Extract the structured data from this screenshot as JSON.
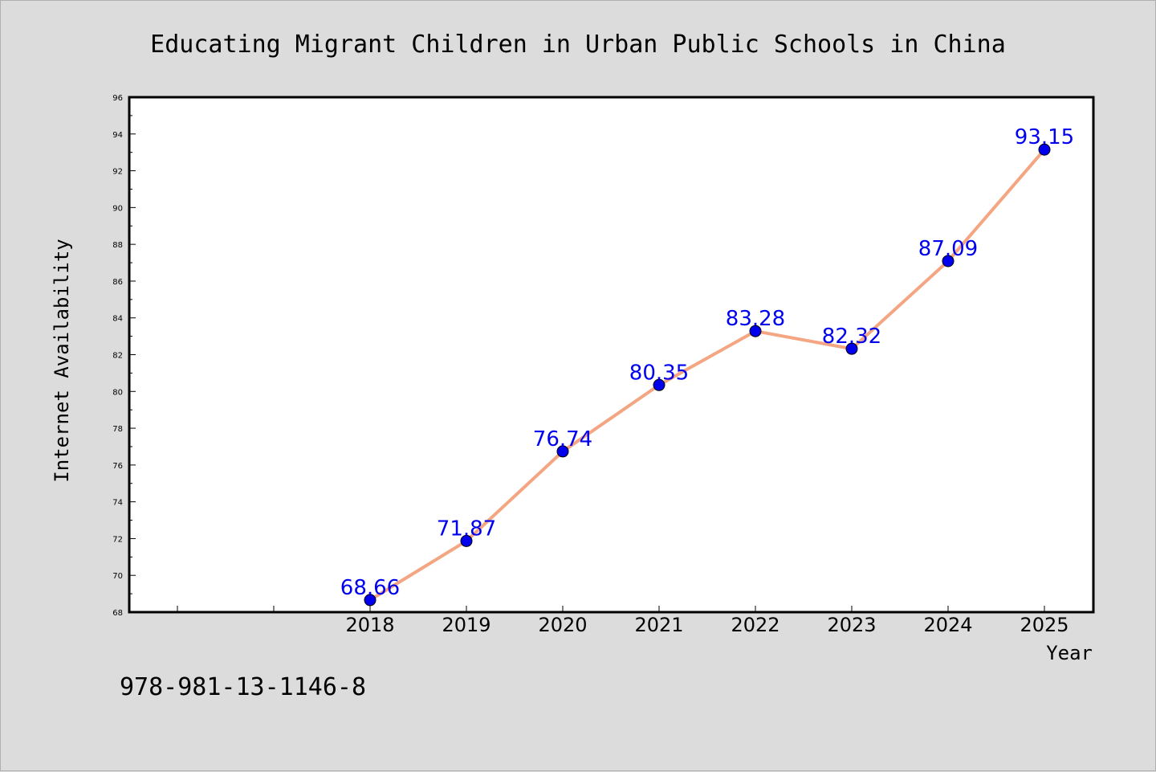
{
  "chart_data": {
    "type": "line",
    "title": "Educating Migrant Children in Urban Public Schools in China",
    "xlabel": "Year",
    "ylabel": "Internet Availability",
    "categories": [
      "2018",
      "2019",
      "2020",
      "2021",
      "2022",
      "2023",
      "2024",
      "2025"
    ],
    "series": [
      {
        "values": [
          68.66,
          71.87,
          76.74,
          80.35,
          83.28,
          82.32,
          87.09,
          93.15
        ],
        "labels": [
          "68.66",
          "71.87",
          "76.74",
          "80.35",
          "83.28",
          "82.32",
          "87.09",
          "93.15"
        ]
      }
    ],
    "y_ticks": [
      "68",
      "70",
      "72",
      "74",
      "76",
      "78",
      "80",
      "82",
      "84",
      "86",
      "88",
      "90",
      "92",
      "94",
      "96"
    ],
    "ylim": [
      68,
      96
    ],
    "grid": false,
    "legend": "none",
    "colors": {
      "line": "#f4a582",
      "marker": "#0000ee",
      "data_label": "#0000ee",
      "plot_background": "#ffffff",
      "figure_background": "#dcdcdc"
    }
  },
  "footer": {
    "isbn": "978-981-13-1146-8"
  }
}
